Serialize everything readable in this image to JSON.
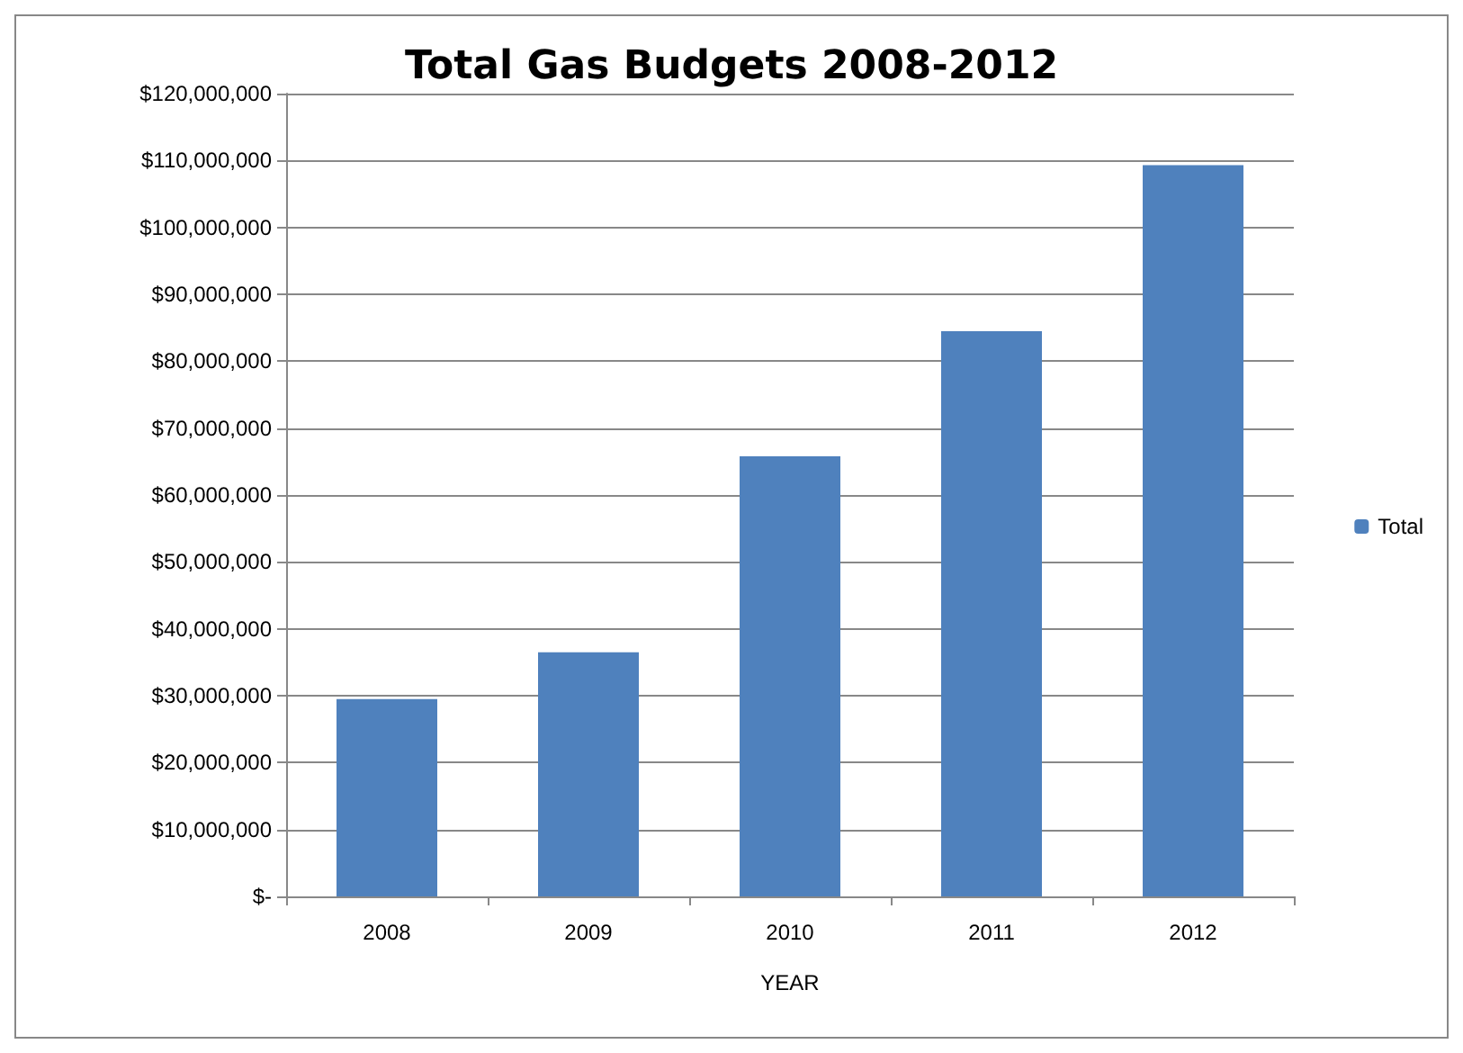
{
  "chart_data": {
    "type": "bar",
    "title": "Total Gas Budgets 2008-2012",
    "xlabel": "YEAR",
    "categories": [
      "2008",
      "2009",
      "2010",
      "2011",
      "2012"
    ],
    "series": [
      {
        "name": "Total",
        "color": "#4f81bd",
        "values": [
          29500000,
          36500000,
          65800000,
          84500000,
          109300000
        ]
      }
    ],
    "ylim": [
      0,
      120000000
    ],
    "yticks": [
      {
        "value": 0,
        "label": "$-"
      },
      {
        "value": 10000000,
        "label": "$10,000,000"
      },
      {
        "value": 20000000,
        "label": "$20,000,000"
      },
      {
        "value": 30000000,
        "label": "$30,000,000"
      },
      {
        "value": 40000000,
        "label": "$40,000,000"
      },
      {
        "value": 50000000,
        "label": "$50,000,000"
      },
      {
        "value": 60000000,
        "label": "$60,000,000"
      },
      {
        "value": 70000000,
        "label": "$70,000,000"
      },
      {
        "value": 80000000,
        "label": "$80,000,000"
      },
      {
        "value": 90000000,
        "label": "$90,000,000"
      },
      {
        "value": 100000000,
        "label": "$100,000,000"
      },
      {
        "value": 110000000,
        "label": "$110,000,000"
      },
      {
        "value": 120000000,
        "label": "$120,000,000"
      }
    ],
    "grid": "y",
    "legend": "right"
  }
}
